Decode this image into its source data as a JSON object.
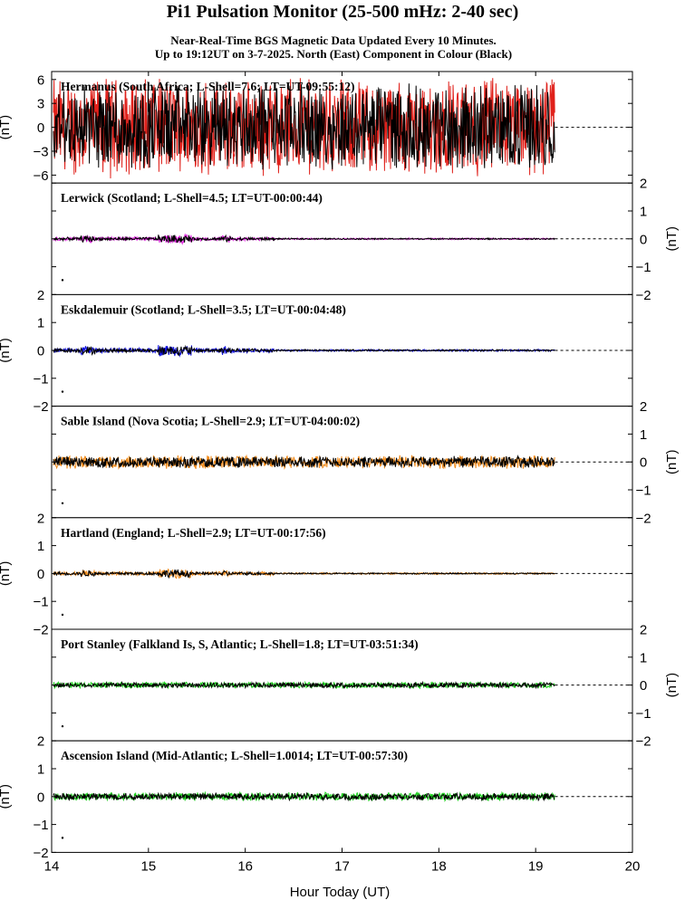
{
  "title": "Pi1 Pulsation Monitor (25-500 mHz: 2-40 sec)",
  "subtitle_line1": "Near-Real-Time BGS Magnetic Data Updated Every 10 Minutes.",
  "subtitle_line2": "Up to 19:12UT on 3-7-2025. North (East) Component in Colour (Black)",
  "xlabel": "Hour Today (UT)",
  "colors": {
    "axis": "#000000",
    "east_component": "#000000",
    "red": "#e0201a",
    "magenta": "#e020e0",
    "blue": "#1010e0",
    "orange": "#f08a1a",
    "green": "#20d020"
  },
  "chart_data": {
    "type": "line",
    "x_range": [
      14,
      20
    ],
    "x_ticks": [
      "14",
      "15",
      "16",
      "17",
      "18",
      "19",
      "20"
    ],
    "data_end_hour": 19.2,
    "panel_unit_label": "(nT)",
    "panels": [
      {
        "station_label": "Hermanus (South Africa; L-Shell=7.6; LT=UT-09:55:12)",
        "ylim": [
          -7,
          7
        ],
        "y_ticks": [
          "6",
          "3",
          "0",
          "−3",
          "−6"
        ],
        "y_tick_values": [
          6,
          3,
          0,
          -3,
          -6
        ],
        "axis_side": "left",
        "color": "red",
        "amplitude_nT": 6.5
      },
      {
        "station_label": "Lerwick (Scotland; L-Shell=4.5; LT=UT-00:00:44)",
        "ylim": [
          -2,
          2
        ],
        "y_ticks": [
          "2",
          "1",
          "0",
          "−1",
          "−2"
        ],
        "y_tick_values": [
          2,
          1,
          0,
          -1,
          -2
        ],
        "axis_side": "right",
        "color": "magenta",
        "amplitude_nT": 0.12
      },
      {
        "station_label": "Eskdalemuir (Scotland; L-Shell=3.5; LT=UT-00:04:48)",
        "ylim": [
          -2,
          2
        ],
        "y_ticks": [
          "2",
          "1",
          "0",
          "−1",
          "−2"
        ],
        "y_tick_values": [
          2,
          1,
          0,
          -1,
          -2
        ],
        "axis_side": "left",
        "color": "blue",
        "amplitude_nT": 0.15
      },
      {
        "station_label": "Sable Island (Nova Scotia; L-Shell=2.9; LT=UT-04:00:02)",
        "ylim": [
          -2,
          2
        ],
        "y_ticks": [
          "2",
          "1",
          "0",
          "−1",
          "−2"
        ],
        "y_tick_values": [
          2,
          1,
          0,
          -1,
          -2
        ],
        "axis_side": "right",
        "color": "orange",
        "amplitude_nT": 0.3
      },
      {
        "station_label": "Hartland (England; L-Shell=2.9; LT=UT-00:17:56)",
        "ylim": [
          -2,
          2
        ],
        "y_ticks": [
          "2",
          "1",
          "0",
          "−1",
          "−2"
        ],
        "y_tick_values": [
          2,
          1,
          0,
          -1,
          -2
        ],
        "axis_side": "left",
        "color": "orange",
        "amplitude_nT": 0.12
      },
      {
        "station_label": "Port Stanley (Falkland Is, S, Atlantic; L-Shell=1.8; LT=UT-03:51:34)",
        "ylim": [
          -2,
          2
        ],
        "y_ticks": [
          "2",
          "1",
          "0",
          "−1",
          "−2"
        ],
        "y_tick_values": [
          2,
          1,
          0,
          -1,
          -2
        ],
        "axis_side": "right",
        "color": "green",
        "amplitude_nT": 0.15
      },
      {
        "station_label": "Ascension Island (Mid-Atlantic; L-Shell=1.0014; LT=UT-00:57:30)",
        "ylim": [
          -2,
          2
        ],
        "y_ticks": [
          "2",
          "1",
          "0",
          "−1",
          "−2"
        ],
        "y_tick_values": [
          2,
          1,
          0,
          -1,
          -2
        ],
        "axis_side": "left",
        "color": "green",
        "amplitude_nT": 0.2
      }
    ]
  }
}
